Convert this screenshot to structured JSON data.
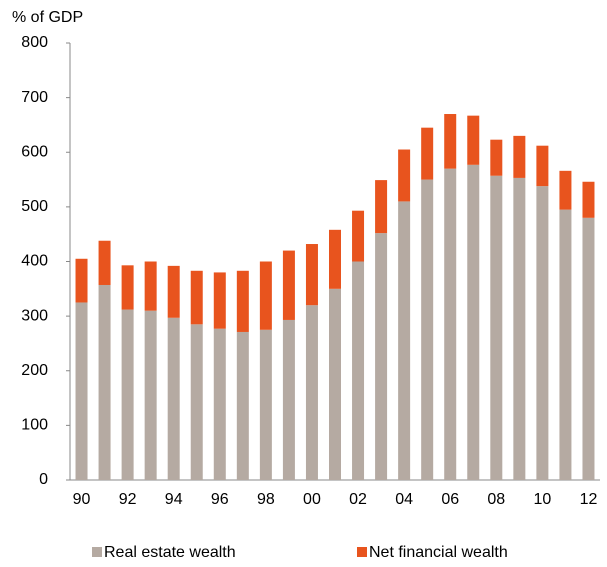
{
  "chart_data": {
    "type": "stacked_bar",
    "y_axis_label": "% of GDP",
    "categories": [
      "90",
      null,
      "92",
      null,
      "94",
      null,
      "96",
      null,
      "98",
      null,
      "00",
      null,
      "02",
      null,
      "04",
      null,
      "06",
      null,
      "08",
      null,
      "10",
      null,
      "12"
    ],
    "series": [
      {
        "name": "Real estate wealth",
        "color": "#b5aaa2",
        "values": [
          325,
          357,
          312,
          310,
          297,
          285,
          277,
          271,
          275,
          293,
          320,
          350,
          400,
          452,
          510,
          550,
          570,
          577,
          557,
          553,
          538,
          495,
          480
        ]
      },
      {
        "name": "Net financial wealth",
        "color": "#e8541e",
        "values": [
          80,
          81,
          81,
          90,
          95,
          98,
          103,
          112,
          125,
          127,
          112,
          108,
          93,
          97,
          95,
          95,
          100,
          90,
          66,
          77,
          74,
          71,
          66
        ]
      }
    ],
    "ylim": [
      0,
      800
    ],
    "yticks": [
      0,
      100,
      200,
      300,
      400,
      500,
      600,
      700,
      800
    ]
  }
}
